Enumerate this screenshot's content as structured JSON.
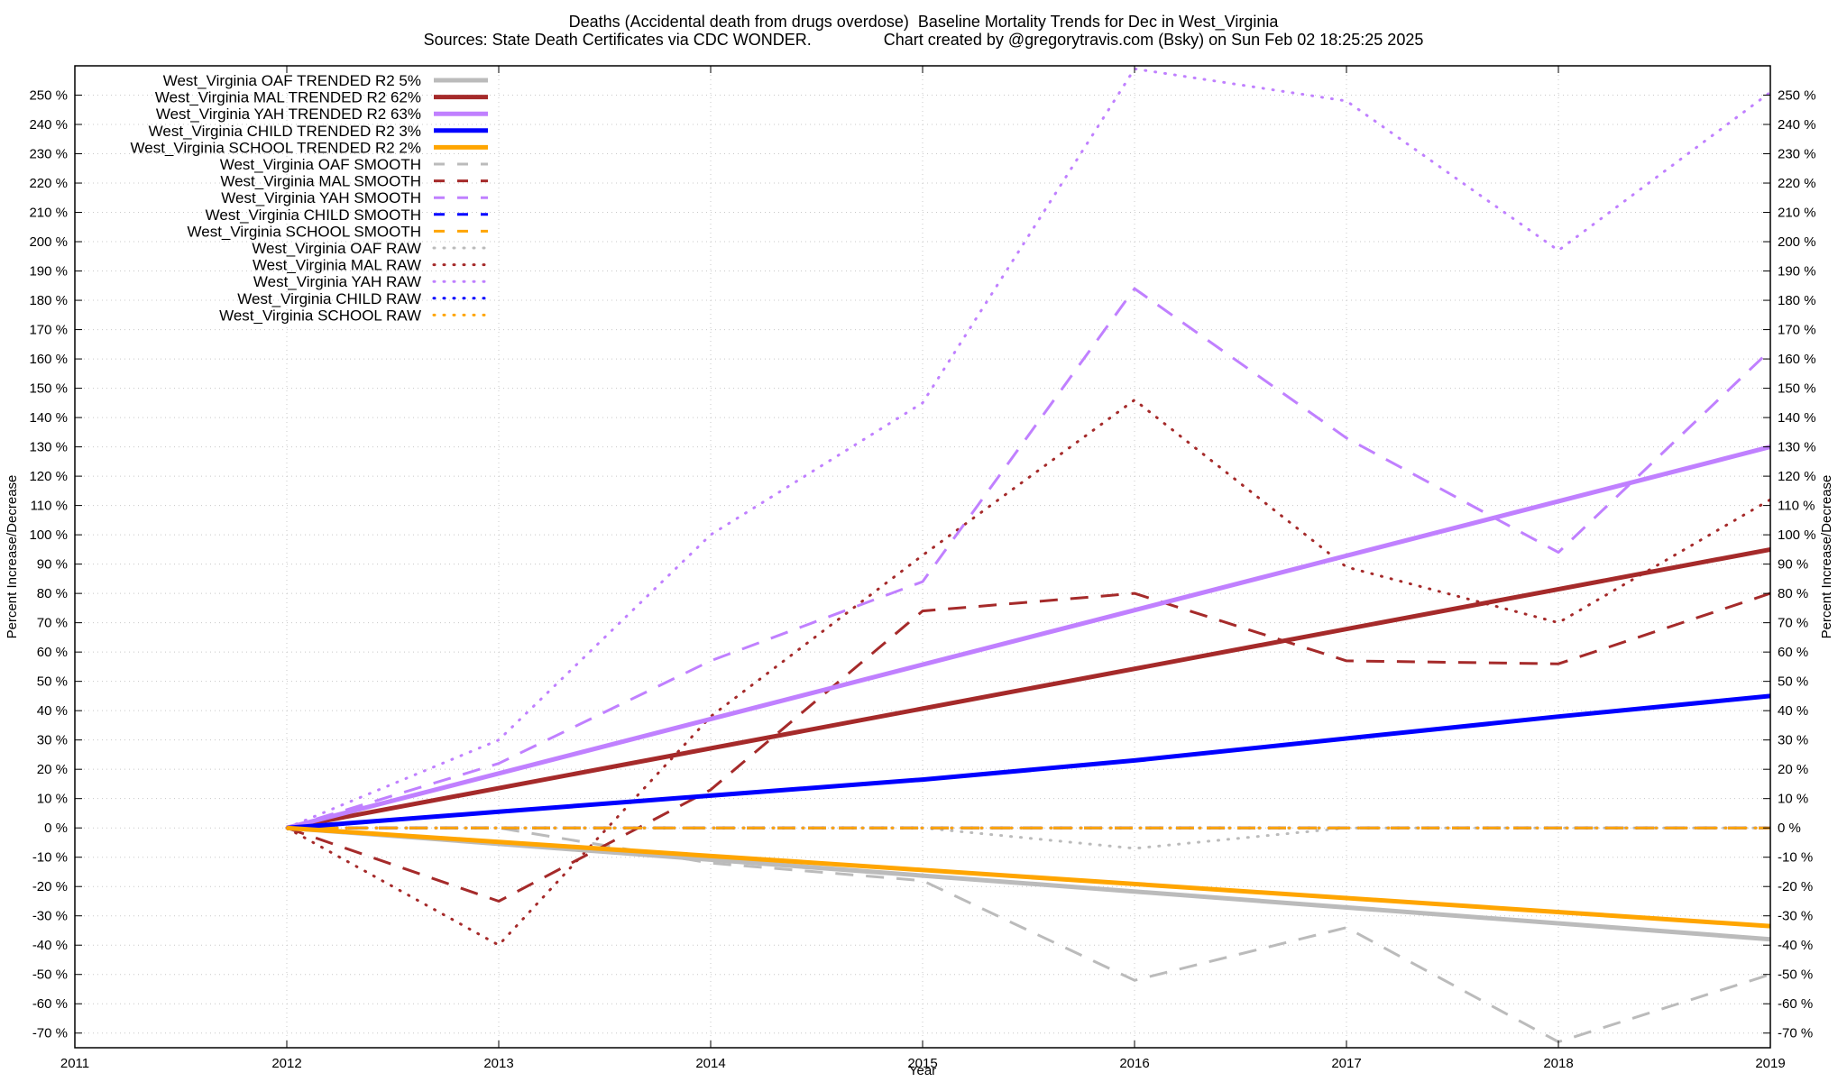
{
  "header": {
    "title_line1": "Deaths (Accidental death from drugs overdose)  Baseline Mortality Trends for Dec in West_Virginia",
    "title_line2": "Sources: State Death Certificates via CDC WONDER.                Chart created by @gregorytravis.com (Bsky) on Sun Feb 02 18:25:25 2025"
  },
  "chart_data": {
    "type": "line",
    "title": "Deaths (Accidental death from drugs overdose)  Baseline Mortality Trends for Dec in West_Virginia",
    "xlabel": "Year",
    "ylabel": "Percent Increase/Decrease",
    "y2label": "Percent Increase/Decrease",
    "xlim": [
      2011,
      2019
    ],
    "ylim": [
      -75,
      260
    ],
    "x_ticks": [
      2011,
      2012,
      2013,
      2014,
      2015,
      2016,
      2017,
      2018,
      2019
    ],
    "y_ticks": [
      -70,
      -60,
      -50,
      -40,
      -30,
      -20,
      -10,
      0,
      10,
      20,
      30,
      40,
      50,
      60,
      70,
      80,
      90,
      100,
      110,
      120,
      130,
      140,
      150,
      160,
      170,
      180,
      190,
      200,
      210,
      220,
      230,
      240,
      250
    ],
    "y_tick_suffix": " %",
    "grid": true,
    "legend_position": "top-left",
    "series": [
      {
        "name": "West_Virginia OAF TRENDED R2  5%",
        "color": "#bbbbbb",
        "style": "solid-thick",
        "x": [
          2012,
          2019
        ],
        "y": [
          0,
          -38
        ]
      },
      {
        "name": "West_Virginia MAL TRENDED R2  62%",
        "color": "#a52a2a",
        "style": "solid-thick",
        "x": [
          2012,
          2019
        ],
        "y": [
          0,
          95
        ]
      },
      {
        "name": "West_Virginia YAH TRENDED R2  63%",
        "color": "#c080ff",
        "style": "solid-thick",
        "x": [
          2012,
          2019
        ],
        "y": [
          0,
          130
        ]
      },
      {
        "name": "West_Virginia CHILD TRENDED R2  3%",
        "color": "#0000ff",
        "style": "solid-thick",
        "x": [
          2012,
          2013,
          2014,
          2015,
          2016,
          2017,
          2018,
          2019
        ],
        "y": [
          0,
          5.5,
          11,
          16.5,
          23,
          30.5,
          38,
          45
        ]
      },
      {
        "name": "West_Virginia SCHOOL TRENDED R2  2%",
        "color": "#ffa500",
        "style": "solid-thick",
        "x": [
          2012,
          2019
        ],
        "y": [
          0,
          -33.5
        ]
      },
      {
        "name": "West_Virginia OAF SMOOTH",
        "color": "#bbbbbb",
        "style": "dashed",
        "x": [
          2012,
          2013,
          2014,
          2015,
          2016,
          2017,
          2018,
          2019
        ],
        "y": [
          0,
          0,
          -12,
          -18,
          -52,
          -34,
          -73,
          -50
        ]
      },
      {
        "name": "West_Virginia MAL SMOOTH",
        "color": "#a52a2a",
        "style": "dashed",
        "x": [
          2012,
          2013,
          2014,
          2015,
          2016,
          2017,
          2018,
          2019
        ],
        "y": [
          0,
          -25,
          13,
          74,
          80,
          57,
          56,
          80
        ]
      },
      {
        "name": "West_Virginia YAH SMOOTH",
        "color": "#c080ff",
        "style": "dashed",
        "x": [
          2012,
          2013,
          2014,
          2015,
          2016,
          2017,
          2018,
          2019
        ],
        "y": [
          0,
          22,
          57,
          84,
          184,
          133,
          94,
          163
        ]
      },
      {
        "name": "West_Virginia CHILD SMOOTH",
        "color": "#0000ff",
        "style": "dashed",
        "x": [
          2012,
          2019
        ],
        "y": [
          0,
          0
        ]
      },
      {
        "name": "West_Virginia SCHOOL SMOOTH",
        "color": "#ffa500",
        "style": "dashed",
        "x": [
          2012,
          2019
        ],
        "y": [
          0,
          0
        ]
      },
      {
        "name": "West_Virginia OAF RAW",
        "color": "#bbbbbb",
        "style": "dotted",
        "x": [
          2012,
          2013,
          2014,
          2015,
          2016,
          2017,
          2018,
          2019
        ],
        "y": [
          0,
          0,
          0,
          0,
          -7,
          0,
          0,
          0
        ]
      },
      {
        "name": "West_Virginia MAL RAW",
        "color": "#a52a2a",
        "style": "dotted",
        "x": [
          2012,
          2013,
          2014,
          2015,
          2016,
          2017,
          2018,
          2019
        ],
        "y": [
          0,
          -40,
          38,
          93,
          146,
          89,
          70,
          112
        ]
      },
      {
        "name": "West_Virginia YAH RAW",
        "color": "#c080ff",
        "style": "dotted",
        "x": [
          2012,
          2013,
          2014,
          2015,
          2016,
          2017,
          2018,
          2019
        ],
        "y": [
          0,
          30,
          100,
          145,
          259,
          248,
          197,
          251
        ]
      },
      {
        "name": "West_Virginia CHILD RAW",
        "color": "#0000ff",
        "style": "dotted",
        "x": [
          2012,
          2019
        ],
        "y": [
          0,
          0
        ]
      },
      {
        "name": "West_Virginia SCHOOL RAW",
        "color": "#ffa500",
        "style": "dotted",
        "x": [
          2012,
          2019
        ],
        "y": [
          0,
          0
        ]
      }
    ]
  }
}
